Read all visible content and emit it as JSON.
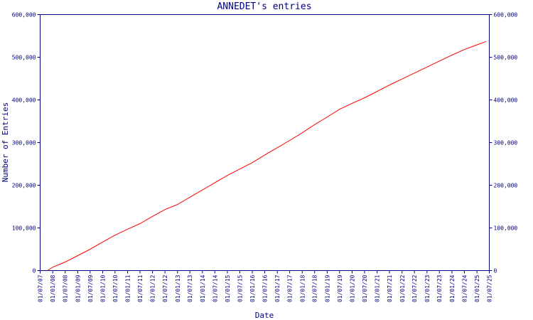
{
  "chart_data": {
    "type": "line",
    "title": "ANNEDET's entries",
    "xlabel": "Date",
    "ylabel": "Number of Entries",
    "grid": false,
    "legend": "none",
    "ylim": [
      0,
      600000
    ],
    "xlim": [
      "2007-07-01",
      "2025-07-01"
    ],
    "y_ticks": [
      "0",
      "100,000",
      "200,000",
      "300,000",
      "400,000",
      "500,000",
      "600,000"
    ],
    "x_ticks": [
      "01/07/07",
      "01/01/08",
      "01/07/08",
      "01/01/09",
      "01/07/09",
      "01/01/10",
      "01/07/10",
      "01/01/11",
      "01/07/11",
      "01/01/12",
      "01/07/12",
      "01/01/13",
      "01/07/13",
      "01/01/14",
      "01/07/14",
      "01/01/15",
      "01/07/15",
      "01/01/16",
      "01/07/16",
      "01/01/17",
      "01/07/17",
      "01/01/18",
      "01/07/18",
      "01/01/19",
      "01/07/19",
      "01/01/20",
      "01/07/20",
      "01/01/21",
      "01/07/21",
      "01/01/22",
      "01/07/22",
      "01/01/23",
      "01/07/23",
      "01/01/24",
      "01/07/24",
      "01/01/25",
      "01/07/25"
    ],
    "series": [
      {
        "color": "#ff0000",
        "x": [
          "2007-10-15",
          "2008-01-01",
          "2008-07-01",
          "2009-01-01",
          "2009-07-01",
          "2010-01-01",
          "2010-07-01",
          "2011-01-01",
          "2011-07-01",
          "2012-01-01",
          "2012-07-01",
          "2013-01-01",
          "2013-07-01",
          "2014-01-01",
          "2014-07-01",
          "2015-01-01",
          "2015-07-01",
          "2016-01-01",
          "2016-07-01",
          "2017-01-01",
          "2017-07-01",
          "2018-01-01",
          "2018-07-01",
          "2019-01-01",
          "2019-07-01",
          "2020-01-01",
          "2020-07-01",
          "2021-01-01",
          "2021-07-01",
          "2022-01-01",
          "2022-07-01",
          "2023-01-01",
          "2023-07-01",
          "2024-01-01",
          "2024-07-01",
          "2025-01-01",
          "2025-05-15"
        ],
        "values": [
          0,
          8000,
          20000,
          35000,
          50000,
          67000,
          83000,
          97000,
          110000,
          127000,
          143000,
          155000,
          172000,
          189000,
          206000,
          223000,
          238000,
          253000,
          271000,
          288000,
          305000,
          323000,
          342000,
          360000,
          378000,
          392000,
          405000,
          420000,
          435000,
          449000,
          463000,
          477000,
          491000,
          505000,
          518000,
          529000,
          537000
        ]
      }
    ]
  },
  "colors": {
    "axis": "#000080",
    "line": "#ff0000",
    "background": "#ffffff"
  }
}
